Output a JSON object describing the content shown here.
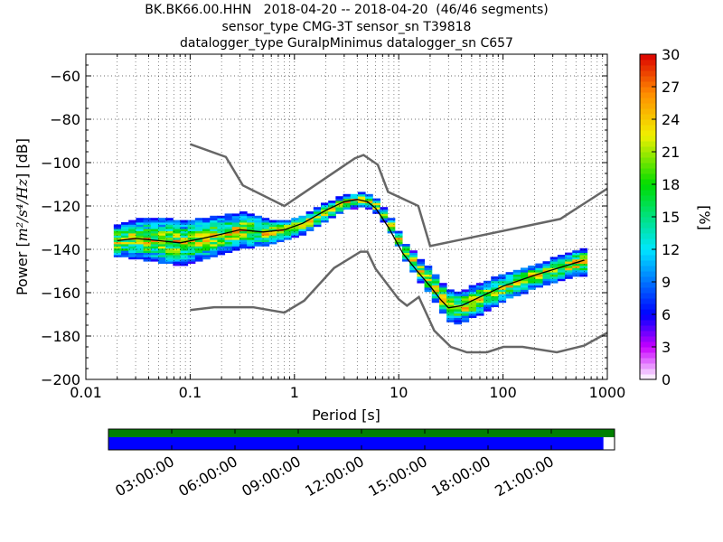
{
  "chart_data": {
    "type": "heatmap",
    "title_lines": [
      "BK.BK66.00.HHN   2018-04-20 -- 2018-04-20  (46/46 segments)",
      "sensor_type CMG-3T sensor_sn T39818",
      "datalogger_type GuralpMinimus datalogger_sn C657"
    ],
    "xlabel": "Period [s]",
    "ylabel": "Power [m²/s⁴/Hz] [dB]",
    "x_scale": "log",
    "xlim": [
      0.01,
      1000
    ],
    "ylim": [
      -200,
      -50
    ],
    "x_ticks": [
      {
        "v": 0.01,
        "label": "0.01"
      },
      {
        "v": 0.1,
        "label": "0.1"
      },
      {
        "v": 1,
        "label": "1"
      },
      {
        "v": 10,
        "label": "10"
      },
      {
        "v": 100,
        "label": "100"
      },
      {
        "v": 1000,
        "label": "1000"
      }
    ],
    "y_ticks": [
      {
        "v": -60,
        "label": "−60"
      },
      {
        "v": -80,
        "label": "−80"
      },
      {
        "v": -100,
        "label": "−100"
      },
      {
        "v": -120,
        "label": "−120"
      },
      {
        "v": -140,
        "label": "−140"
      },
      {
        "v": -160,
        "label": "−160"
      },
      {
        "v": -180,
        "label": "−180"
      },
      {
        "v": -200,
        "label": "−200"
      }
    ],
    "grid": true,
    "noise_model_high": [
      [
        0.1,
        -91.5
      ],
      [
        0.22,
        -97.4
      ],
      [
        0.32,
        -110.5
      ],
      [
        0.8,
        -120
      ],
      [
        3.8,
        -98
      ],
      [
        4.6,
        -96.5
      ],
      [
        6.3,
        -101
      ],
      [
        7.9,
        -113.5
      ],
      [
        15.4,
        -120
      ],
      [
        20,
        -138.5
      ],
      [
        354,
        -126
      ],
      [
        1000,
        -112
      ]
    ],
    "noise_model_low": [
      [
        0.1,
        -168
      ],
      [
        0.17,
        -166.7
      ],
      [
        0.4,
        -166.7
      ],
      [
        0.8,
        -169.2
      ],
      [
        1.24,
        -163.7
      ],
      [
        2.4,
        -148.6
      ],
      [
        4.3,
        -141.1
      ],
      [
        5,
        -141.1
      ],
      [
        6,
        -149
      ],
      [
        10,
        -163
      ],
      [
        12,
        -166
      ],
      [
        15.6,
        -162
      ],
      [
        21.9,
        -177.5
      ],
      [
        31.6,
        -185
      ],
      [
        45,
        -187.5
      ],
      [
        70,
        -187.5
      ],
      [
        101,
        -185
      ],
      [
        154,
        -185
      ],
      [
        328,
        -187.5
      ],
      [
        600,
        -184.4
      ],
      [
        1000,
        -178.5
      ]
    ],
    "mode_curve": [
      [
        0.02,
        -136
      ],
      [
        0.03,
        -135
      ],
      [
        0.05,
        -136
      ],
      [
        0.08,
        -137
      ],
      [
        0.13,
        -135
      ],
      [
        0.2,
        -133
      ],
      [
        0.3,
        -131
      ],
      [
        0.5,
        -132
      ],
      [
        0.8,
        -131
      ],
      [
        1.2,
        -128
      ],
      [
        2,
        -122
      ],
      [
        3,
        -118
      ],
      [
        4,
        -117
      ],
      [
        5,
        -118
      ],
      [
        6,
        -121
      ],
      [
        8,
        -130
      ],
      [
        11,
        -142
      ],
      [
        15,
        -150
      ],
      [
        20,
        -157
      ],
      [
        25,
        -163
      ],
      [
        30,
        -167
      ],
      [
        40,
        -166
      ],
      [
        60,
        -162
      ],
      [
        100,
        -157
      ],
      [
        200,
        -152
      ],
      [
        600,
        -145
      ]
    ],
    "spread_db": [
      [
        0.02,
        7
      ],
      [
        0.03,
        9
      ],
      [
        0.05,
        10
      ],
      [
        0.08,
        10
      ],
      [
        0.15,
        9
      ],
      [
        0.3,
        8
      ],
      [
        0.6,
        5
      ],
      [
        1,
        4
      ],
      [
        2,
        4
      ],
      [
        3,
        3
      ],
      [
        5,
        3
      ],
      [
        8,
        3
      ],
      [
        12,
        4
      ],
      [
        20,
        6
      ],
      [
        30,
        7
      ],
      [
        50,
        7
      ],
      [
        100,
        6
      ],
      [
        200,
        5
      ],
      [
        600,
        6
      ]
    ],
    "colorbar": {
      "label": "[%]",
      "range": [
        0,
        30
      ],
      "ticks": [
        {
          "v": 0,
          "label": "0"
        },
        {
          "v": 3,
          "label": "3"
        },
        {
          "v": 6,
          "label": "6"
        },
        {
          "v": 9,
          "label": "9"
        },
        {
          "v": 12,
          "label": "12"
        },
        {
          "v": 15,
          "label": "15"
        },
        {
          "v": 18,
          "label": "18"
        },
        {
          "v": 21,
          "label": "21"
        },
        {
          "v": 24,
          "label": "24"
        },
        {
          "v": 27,
          "label": "27"
        },
        {
          "v": 30,
          "label": "30"
        }
      ]
    },
    "timeline": {
      "time_labels": [
        "03:00:00",
        "06:00:00",
        "09:00:00",
        "12:00:00",
        "15:00:00",
        "18:00:00",
        "21:00:00"
      ],
      "top_bar_color": "#008000",
      "data_bar_color": "#0000ff",
      "coverage_fraction": 0.978
    },
    "colors": {
      "noise_models": "#666666",
      "mode": "#000000"
    }
  }
}
